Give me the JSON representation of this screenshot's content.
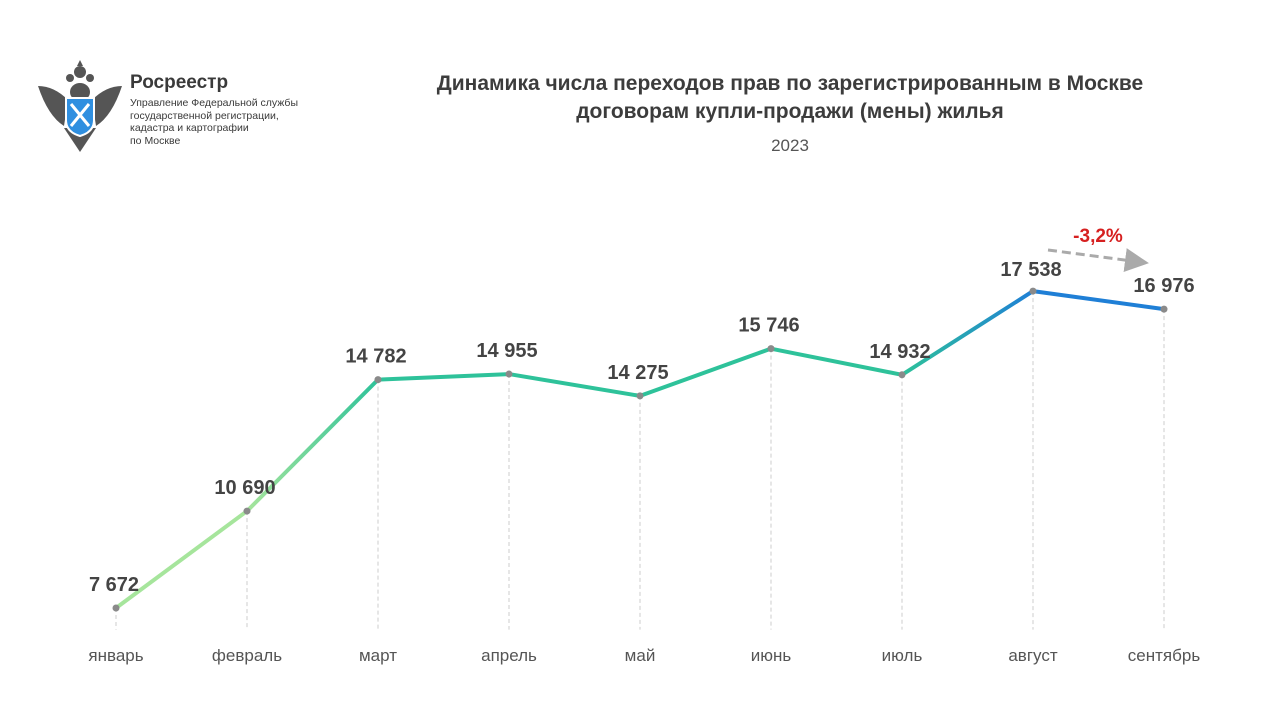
{
  "header": {
    "brand": "Росреестр",
    "subtitle_lines": [
      "Управление Федеральной службы",
      "государственной регистрации,",
      "кадастра и картографии",
      "по Москве"
    ],
    "title_lines": [
      "Динамика числа переходов прав по зарегистрированным в Москве",
      "договорам купли-продажи (мены) жилья"
    ],
    "year": "2023"
  },
  "chart_data": {
    "type": "line",
    "title": "Динамика числа переходов прав по зарегистрированным в Москве договорам купли-продажи (мены) жилья",
    "subtitle": "2023",
    "categories": [
      "январь",
      "февраль",
      "март",
      "апрель",
      "май",
      "июнь",
      "июль",
      "август",
      "сентябрь"
    ],
    "values": [
      7672,
      10690,
      14782,
      14955,
      14275,
      15746,
      14932,
      17538,
      16976
    ],
    "value_labels": [
      "7 672",
      "10 690",
      "14 782",
      "14 955",
      "14 275",
      "15 746",
      "14 932",
      "17 538",
      "16 976"
    ],
    "ylim": [
      7000,
      20000
    ],
    "grid": "vertical dashed drop lines",
    "annotation": {
      "text": "-3,2%",
      "from": "август",
      "to": "сентябрь",
      "color": "#d62020"
    },
    "colors": {
      "start": "#a6e59c",
      "mid": "#2ec29a",
      "end": "#1f7fd6",
      "point": "#8a8a8a"
    }
  }
}
